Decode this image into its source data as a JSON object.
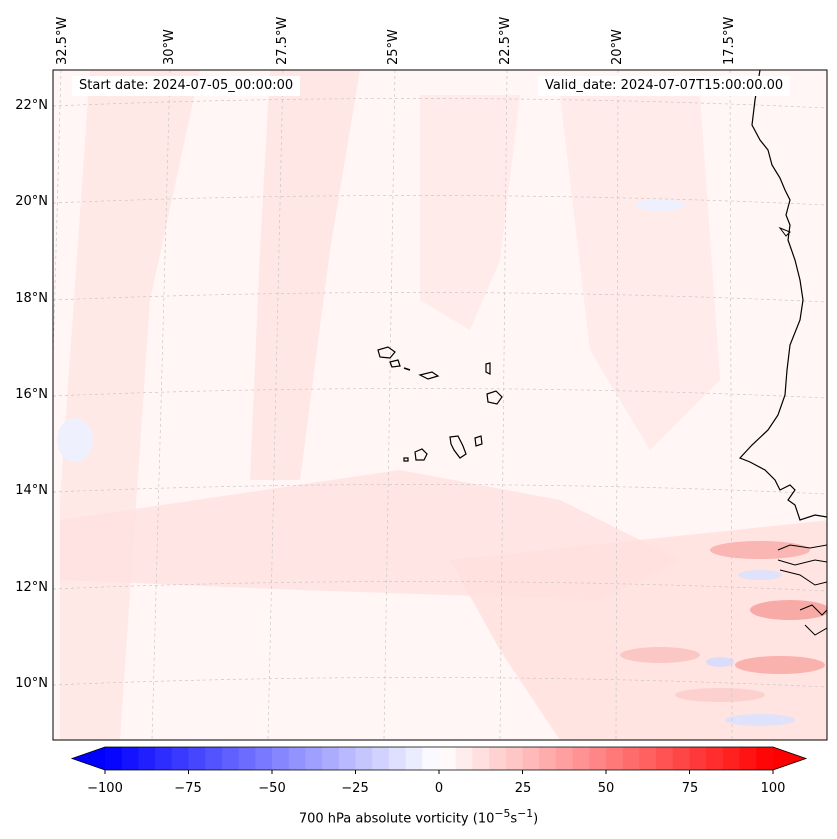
{
  "map": {
    "start_label": "Start date: 2024-07-05_00:00:00",
    "valid_label": "Valid_date: 2024-07-07T15:00:00.00",
    "lon_labels": [
      "32.5°W",
      "30°W",
      "27.5°W",
      "25°W",
      "22.5°W",
      "20°W",
      "17.5°W"
    ],
    "lat_labels": [
      "22°N",
      "20°N",
      "18°N",
      "16°N",
      "14°N",
      "12°N",
      "10°N"
    ],
    "islands": [
      "Santo Antão",
      "São Vicente",
      "Santa Luzia",
      "São Nicolau",
      "Sal",
      "Boa Vista",
      "Maio",
      "Santiago",
      "Fogo",
      "Brava"
    ],
    "colors": {
      "positive": "#ff0000",
      "negative": "#0000ff",
      "background": "#fff6f5",
      "coast": "#000000"
    }
  },
  "colorbar": {
    "ticks": [
      "−100",
      "−75",
      "−50",
      "−25",
      "0",
      "25",
      "50",
      "75",
      "100"
    ],
    "label": "700 hPa absolute vorticity (10",
    "label_exp1": "−5",
    "label_mid": "s",
    "label_exp2": "−1",
    "label_end": ")",
    "min": -100,
    "max": 100,
    "step": 5
  }
}
